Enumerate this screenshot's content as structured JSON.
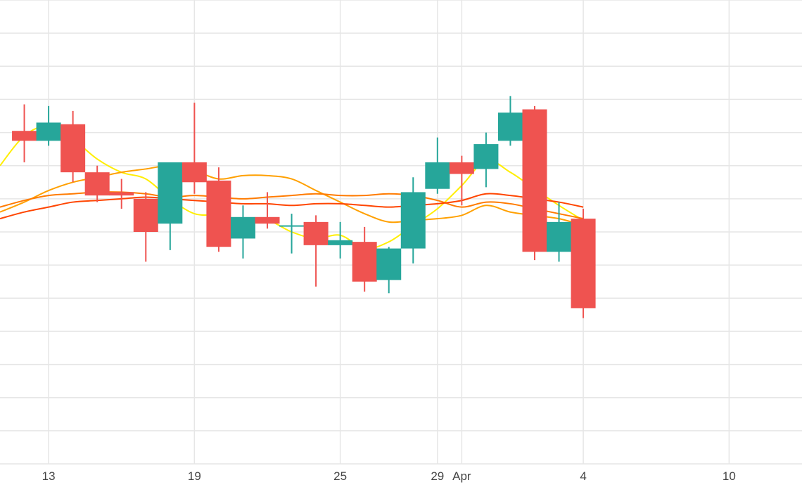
{
  "chart_data": {
    "type": "candlestick",
    "title": "",
    "xlabel": "",
    "ylabel": "",
    "grid": true,
    "legend": "none",
    "x_ticks": [
      {
        "date": "2023-03-13",
        "label": "13"
      },
      {
        "date": "2023-03-19",
        "label": "19"
      },
      {
        "date": "2023-03-25",
        "label": "25"
      },
      {
        "date": "2023-03-29",
        "label": "29"
      },
      {
        "date": "2023-03-30",
        "label": "Apr"
      },
      {
        "date": "2023-04-04",
        "label": "4"
      },
      {
        "date": "2023-04-10",
        "label": "10"
      }
    ],
    "x_range": [
      "2023-03-11",
      "2023-04-13"
    ],
    "y_range": [
      0,
      14
    ],
    "series": [
      {
        "type": "candlestick",
        "candles": [
          {
            "date": "2023-03-12",
            "open": 10.05,
            "high": 10.85,
            "low": 9.1,
            "close": 9.75
          },
          {
            "date": "2023-03-13",
            "open": 9.75,
            "high": 10.8,
            "low": 9.6,
            "close": 10.3
          },
          {
            "date": "2023-03-14",
            "open": 10.25,
            "high": 10.65,
            "low": 8.5,
            "close": 8.8
          },
          {
            "date": "2023-03-15",
            "open": 8.8,
            "high": 9.0,
            "low": 7.9,
            "close": 8.1
          },
          {
            "date": "2023-03-16",
            "open": 8.2,
            "high": 8.6,
            "low": 7.7,
            "close": 8.1
          },
          {
            "date": "2023-03-17",
            "open": 8.0,
            "high": 8.2,
            "low": 6.1,
            "close": 7.0
          },
          {
            "date": "2023-03-18",
            "open": 7.25,
            "high": 9.1,
            "low": 6.45,
            "close": 9.1
          },
          {
            "date": "2023-03-19",
            "open": 9.1,
            "high": 10.9,
            "low": 8.15,
            "close": 8.5
          },
          {
            "date": "2023-03-20",
            "open": 8.55,
            "high": 8.95,
            "low": 6.4,
            "close": 6.55
          },
          {
            "date": "2023-03-21",
            "open": 6.8,
            "high": 7.8,
            "low": 6.2,
            "close": 7.45
          },
          {
            "date": "2023-03-22",
            "open": 7.45,
            "high": 8.2,
            "low": 7.1,
            "close": 7.25
          },
          {
            "date": "2023-03-23",
            "open": 7.2,
            "high": 7.55,
            "low": 6.35,
            "close": 7.2
          },
          {
            "date": "2023-03-24",
            "open": 7.3,
            "high": 7.5,
            "low": 5.35,
            "close": 6.6
          },
          {
            "date": "2023-03-25",
            "open": 6.6,
            "high": 7.3,
            "low": 6.2,
            "close": 6.75
          },
          {
            "date": "2023-03-26",
            "open": 6.7,
            "high": 7.15,
            "low": 5.2,
            "close": 5.5
          },
          {
            "date": "2023-03-27",
            "open": 5.55,
            "high": 6.55,
            "low": 5.15,
            "close": 6.5
          },
          {
            "date": "2023-03-28",
            "open": 6.5,
            "high": 8.65,
            "low": 6.05,
            "close": 8.2
          },
          {
            "date": "2023-03-29",
            "open": 8.3,
            "high": 9.85,
            "low": 8.15,
            "close": 9.1
          },
          {
            "date": "2023-03-30",
            "open": 9.1,
            "high": 9.3,
            "low": 7.8,
            "close": 8.75
          },
          {
            "date": "2023-03-31",
            "open": 8.9,
            "high": 10.0,
            "low": 8.35,
            "close": 9.65
          },
          {
            "date": "2023-04-01",
            "open": 9.75,
            "high": 11.1,
            "low": 9.6,
            "close": 10.6
          },
          {
            "date": "2023-04-02",
            "open": 10.7,
            "high": 10.8,
            "low": 6.15,
            "close": 6.4
          },
          {
            "date": "2023-04-03",
            "open": 6.4,
            "high": 7.9,
            "low": 6.1,
            "close": 7.3
          },
          {
            "date": "2023-04-04",
            "open": 7.4,
            "high": 7.7,
            "low": 4.4,
            "close": 4.7
          }
        ],
        "increasing_color": "#26a69a",
        "decreasing_color": "#ef5350"
      },
      {
        "type": "line",
        "color": "#ffee00",
        "points": [
          [
            "2023-03-11",
            9.0
          ],
          [
            "2023-03-12",
            9.9
          ],
          [
            "2023-03-13",
            10.2
          ],
          [
            "2023-03-14",
            9.8
          ],
          [
            "2023-03-15",
            9.2
          ],
          [
            "2023-03-16",
            8.8
          ],
          [
            "2023-03-17",
            8.6
          ],
          [
            "2023-03-18",
            8.0
          ],
          [
            "2023-03-19",
            7.55
          ],
          [
            "2023-03-20",
            7.5
          ],
          [
            "2023-03-21",
            7.3
          ],
          [
            "2023-03-22",
            7.35
          ],
          [
            "2023-03-23",
            7.0
          ],
          [
            "2023-03-24",
            6.8
          ],
          [
            "2023-03-25",
            6.9
          ],
          [
            "2023-03-26",
            6.5
          ],
          [
            "2023-03-27",
            6.7
          ],
          [
            "2023-03-28",
            7.2
          ],
          [
            "2023-03-29",
            7.7
          ],
          [
            "2023-03-30",
            8.4
          ],
          [
            "2023-03-31",
            9.15
          ],
          [
            "2023-04-01",
            8.8
          ],
          [
            "2023-04-02",
            8.3
          ],
          [
            "2023-04-03",
            7.8
          ],
          [
            "2023-04-04",
            7.35
          ]
        ]
      },
      {
        "type": "line",
        "color": "#ffa000",
        "points": [
          [
            "2023-03-11",
            7.6
          ],
          [
            "2023-03-12",
            7.9
          ],
          [
            "2023-03-13",
            8.25
          ],
          [
            "2023-03-14",
            8.5
          ],
          [
            "2023-03-15",
            8.65
          ],
          [
            "2023-03-16",
            8.8
          ],
          [
            "2023-03-17",
            8.9
          ],
          [
            "2023-03-18",
            9.0
          ],
          [
            "2023-03-19",
            8.85
          ],
          [
            "2023-03-20",
            8.6
          ],
          [
            "2023-03-21",
            8.7
          ],
          [
            "2023-03-22",
            8.7
          ],
          [
            "2023-03-23",
            8.6
          ],
          [
            "2023-03-24",
            8.25
          ],
          [
            "2023-03-25",
            7.9
          ],
          [
            "2023-03-26",
            7.55
          ],
          [
            "2023-03-27",
            7.3
          ],
          [
            "2023-03-28",
            7.35
          ],
          [
            "2023-03-29",
            7.4
          ],
          [
            "2023-03-30",
            7.5
          ],
          [
            "2023-03-31",
            7.8
          ],
          [
            "2023-04-01",
            7.6
          ],
          [
            "2023-04-02",
            7.5
          ],
          [
            "2023-04-03",
            7.4
          ],
          [
            "2023-04-04",
            7.2
          ]
        ]
      },
      {
        "type": "line",
        "color": "#ff7b00",
        "points": [
          [
            "2023-03-11",
            7.75
          ],
          [
            "2023-03-12",
            7.95
          ],
          [
            "2023-03-13",
            8.1
          ],
          [
            "2023-03-14",
            8.15
          ],
          [
            "2023-03-15",
            8.2
          ],
          [
            "2023-03-16",
            8.2
          ],
          [
            "2023-03-17",
            8.15
          ],
          [
            "2023-03-18",
            8.05
          ],
          [
            "2023-03-19",
            8.1
          ],
          [
            "2023-03-20",
            8.05
          ],
          [
            "2023-03-21",
            8.0
          ],
          [
            "2023-03-22",
            8.05
          ],
          [
            "2023-03-23",
            8.1
          ],
          [
            "2023-03-24",
            8.15
          ],
          [
            "2023-03-25",
            8.1
          ],
          [
            "2023-03-26",
            8.1
          ],
          [
            "2023-03-27",
            8.15
          ],
          [
            "2023-03-28",
            8.1
          ],
          [
            "2023-03-29",
            7.95
          ],
          [
            "2023-03-30",
            7.75
          ],
          [
            "2023-03-31",
            7.9
          ],
          [
            "2023-04-01",
            7.85
          ],
          [
            "2023-04-02",
            7.7
          ],
          [
            "2023-04-03",
            7.55
          ],
          [
            "2023-04-04",
            7.4
          ]
        ]
      },
      {
        "type": "line",
        "color": "#ff4500",
        "points": [
          [
            "2023-03-11",
            7.4
          ],
          [
            "2023-03-12",
            7.6
          ],
          [
            "2023-03-13",
            7.75
          ],
          [
            "2023-03-14",
            7.9
          ],
          [
            "2023-03-15",
            7.95
          ],
          [
            "2023-03-16",
            8.0
          ],
          [
            "2023-03-17",
            8.05
          ],
          [
            "2023-03-18",
            8.0
          ],
          [
            "2023-03-19",
            7.95
          ],
          [
            "2023-03-20",
            7.9
          ],
          [
            "2023-03-21",
            7.85
          ],
          [
            "2023-03-22",
            7.85
          ],
          [
            "2023-03-23",
            7.8
          ],
          [
            "2023-03-24",
            7.85
          ],
          [
            "2023-03-25",
            7.85
          ],
          [
            "2023-03-26",
            7.8
          ],
          [
            "2023-03-27",
            7.75
          ],
          [
            "2023-03-28",
            7.8
          ],
          [
            "2023-03-29",
            7.85
          ],
          [
            "2023-03-30",
            7.95
          ],
          [
            "2023-03-31",
            8.15
          ],
          [
            "2023-04-01",
            8.1
          ],
          [
            "2023-04-02",
            8.0
          ],
          [
            "2023-04-03",
            7.9
          ],
          [
            "2023-04-04",
            7.75
          ]
        ]
      }
    ]
  }
}
